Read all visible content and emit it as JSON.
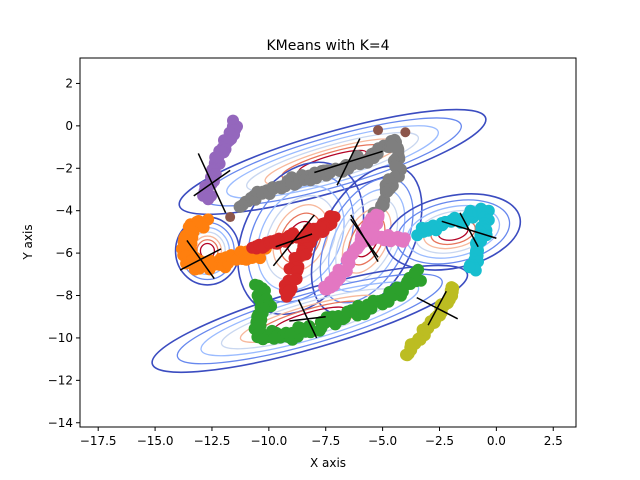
{
  "chart_data": {
    "type": "scatter",
    "title": "KMeans with K=4",
    "xlabel": "X axis",
    "ylabel": "Y axis",
    "xlim": [
      -18.3,
      3.5
    ],
    "ylim": [
      -14.2,
      3.2
    ],
    "xticks": [
      -17.5,
      -15.0,
      -12.5,
      -10.0,
      -7.5,
      -5.0,
      -2.5,
      0.0,
      2.5
    ],
    "xtick_labels": [
      "−17.5",
      "−15.0",
      "−12.5",
      "−10.0",
      "−7.5",
      "−5.0",
      "−2.5",
      "0.0",
      "2.5"
    ],
    "yticks": [
      2,
      0,
      -2,
      -4,
      -6,
      -8,
      -10,
      -12,
      -14
    ],
    "ytick_labels": [
      "2",
      "0",
      "−2",
      "−4",
      "−6",
      "−8",
      "−10",
      "−12",
      "−14"
    ],
    "grid": false,
    "legend": false,
    "clusters": [
      {
        "color": "#9467bd",
        "path": [
          [
            -11.4,
            0.1
          ],
          [
            -11.8,
            -0.6
          ],
          [
            -12.3,
            -1.6
          ],
          [
            -12.6,
            -2.7
          ],
          [
            -12.8,
            -3.6
          ]
        ],
        "width": 0.35,
        "count": 50
      },
      {
        "color": "#ff7f0e",
        "path": [
          [
            -12.8,
            -4.3
          ],
          [
            -13.3,
            -5.0
          ],
          [
            -13.7,
            -5.9
          ],
          [
            -13.4,
            -6.6
          ],
          [
            -12.4,
            -6.5
          ],
          [
            -10.9,
            -6.1
          ],
          [
            -10.2,
            -5.9
          ]
        ],
        "width": 0.5,
        "count": 80
      },
      {
        "color": "#7f7f7f",
        "path": [
          [
            -11.4,
            -3.9
          ],
          [
            -10.2,
            -3.1
          ],
          [
            -8.7,
            -2.5
          ],
          [
            -7.2,
            -2.1
          ],
          [
            -5.7,
            -1.5
          ],
          [
            -4.5,
            -0.8
          ],
          [
            -4.2,
            -1.5
          ],
          [
            -4.6,
            -2.6
          ],
          [
            -5.1,
            -3.6
          ],
          [
            -5.3,
            -4.3
          ]
        ],
        "width": 0.4,
        "count": 110
      },
      {
        "color": "#d62728",
        "path": [
          [
            -10.7,
            -5.8
          ],
          [
            -9.6,
            -5.4
          ],
          [
            -8.4,
            -5.1
          ],
          [
            -7.6,
            -4.7
          ],
          [
            -7.2,
            -4.3
          ],
          [
            -7.8,
            -4.9
          ],
          [
            -8.3,
            -5.6
          ],
          [
            -8.8,
            -6.6
          ],
          [
            -9.3,
            -8.0
          ]
        ],
        "width": 0.4,
        "count": 90
      },
      {
        "color": "#e377c2",
        "path": [
          [
            -7.5,
            -7.8
          ],
          [
            -6.9,
            -7.0
          ],
          [
            -6.3,
            -6.1
          ],
          [
            -5.7,
            -5.0
          ],
          [
            -5.3,
            -4.3
          ],
          [
            -5.6,
            -5.2
          ],
          [
            -4.7,
            -5.3
          ],
          [
            -3.9,
            -5.3
          ]
        ],
        "width": 0.35,
        "count": 80
      },
      {
        "color": "#2ca02c",
        "path": [
          [
            -10.5,
            -7.5
          ],
          [
            -10.1,
            -8.6
          ],
          [
            -10.6,
            -9.7
          ],
          [
            -9.5,
            -10.0
          ],
          [
            -8.1,
            -9.5
          ],
          [
            -6.6,
            -8.9
          ],
          [
            -5.0,
            -8.3
          ],
          [
            -3.8,
            -7.5
          ],
          [
            -3.4,
            -7.0
          ]
        ],
        "width": 0.45,
        "count": 110
      },
      {
        "color": "#17becf",
        "path": [
          [
            -3.4,
            -5.0
          ],
          [
            -2.5,
            -4.7
          ],
          [
            -1.5,
            -4.4
          ],
          [
            -0.5,
            -3.9
          ],
          [
            -0.5,
            -4.8
          ],
          [
            -0.8,
            -5.8
          ],
          [
            -1.1,
            -6.8
          ]
        ],
        "width": 0.35,
        "count": 70
      },
      {
        "color": "#bcbd22",
        "path": [
          [
            -4.0,
            -10.9
          ],
          [
            -3.4,
            -10.0
          ],
          [
            -2.7,
            -9.1
          ],
          [
            -2.2,
            -8.3
          ],
          [
            -1.9,
            -7.6
          ]
        ],
        "width": 0.25,
        "count": 45
      }
    ],
    "outliers": [
      {
        "x": -11.7,
        "y": -4.3,
        "color": "#8c564b"
      },
      {
        "x": -5.2,
        "y": -0.2,
        "color": "#8c564b"
      },
      {
        "x": -4.0,
        "y": -0.3,
        "color": "#8c564b"
      }
    ],
    "gaussians": [
      {
        "cx": -7.2,
        "cy": -1.7,
        "rx": 7.0,
        "ry": 1.4,
        "angle": 16
      },
      {
        "cx": -12.7,
        "cy": -5.9,
        "rx": 1.4,
        "ry": 1.6,
        "angle": 0
      },
      {
        "cx": -8.6,
        "cy": -5.3,
        "rx": 2.5,
        "ry": 3.8,
        "angle": -28
      },
      {
        "cx": -5.7,
        "cy": -5.4,
        "rx": 2.0,
        "ry": 3.8,
        "angle": -28
      },
      {
        "cx": -1.9,
        "cy": -5.0,
        "rx": 3.0,
        "ry": 1.7,
        "angle": 12
      },
      {
        "cx": -8.2,
        "cy": -9.1,
        "rx": 7.2,
        "ry": 1.4,
        "angle": 16
      }
    ],
    "contour_colors": [
      "#3b4cc0",
      "#6788ee",
      "#9abbff",
      "#c9d7f0",
      "#f7b89c",
      "#e7745b",
      "#b40426"
    ],
    "axes_crosses": [
      {
        "cx": -12.5,
        "cy": -2.7,
        "a1": [
          0.8,
          0.6
        ],
        "a2": [
          0.6,
          -1.4
        ]
      },
      {
        "cx": -13.0,
        "cy": -6.3,
        "a1": [
          0.9,
          0.5
        ],
        "a2": [
          0.6,
          -0.9
        ]
      },
      {
        "cx": -6.5,
        "cy": -1.7,
        "a1": [
          0.5,
          1.1
        ],
        "a2": [
          1.5,
          0.5
        ]
      },
      {
        "cx": -8.9,
        "cy": -5.4,
        "a1": [
          0.9,
          1.2
        ],
        "a2": [
          0.8,
          0.3
        ]
      },
      {
        "cx": -5.8,
        "cy": -5.3,
        "a1": [
          0.6,
          -1.1
        ],
        "a2": [
          -0.6,
          0.9
        ]
      },
      {
        "cx": -1.2,
        "cy": -4.9,
        "a1": [
          -0.4,
          0.8
        ],
        "a2": [
          1.2,
          -0.4
        ]
      },
      {
        "cx": -8.3,
        "cy": -9.1,
        "a1": [
          0.8,
          0.1
        ],
        "a2": [
          -0.4,
          0.9
        ]
      },
      {
        "cx": -2.6,
        "cy": -8.6,
        "a1": [
          -0.9,
          0.5
        ],
        "a2": [
          -0.4,
          -0.8
        ]
      }
    ]
  }
}
